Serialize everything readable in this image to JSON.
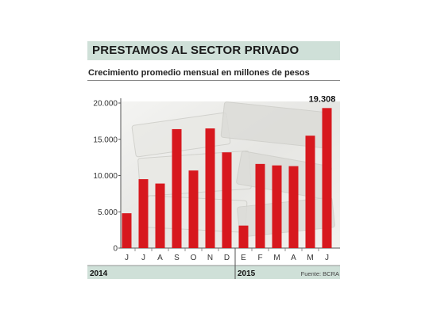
{
  "header": {
    "title": "PRESTAMOS AL SECTOR PRIVADO",
    "subtitle": "Crecimiento promedio mensual en millones de pesos"
  },
  "footer": {
    "source": "Fuente: BCRA"
  },
  "colors": {
    "bar": "#d7181e",
    "title_band": "#cfe0d8"
  },
  "chart_data": {
    "type": "bar",
    "categories": [
      "J",
      "J",
      "A",
      "S",
      "O",
      "N",
      "D",
      "E",
      "F",
      "M",
      "A",
      "M",
      "J"
    ],
    "values": [
      4800,
      9500,
      8900,
      16400,
      10700,
      16500,
      13200,
      3100,
      11600,
      11400,
      11300,
      15500,
      19308
    ],
    "ylim": [
      0,
      20000
    ],
    "yticks": [
      0,
      5000,
      10000,
      15000,
      20000
    ],
    "ytick_labels": [
      "0",
      "5.000",
      "10.000",
      "15.000",
      "20.000"
    ],
    "year_groups": [
      {
        "label": "2014",
        "from": 0,
        "to": 6
      },
      {
        "label": "2015",
        "from": 7,
        "to": 12
      }
    ],
    "annotations": [
      {
        "index": 12,
        "text": "19.308"
      }
    ],
    "grid": false
  }
}
